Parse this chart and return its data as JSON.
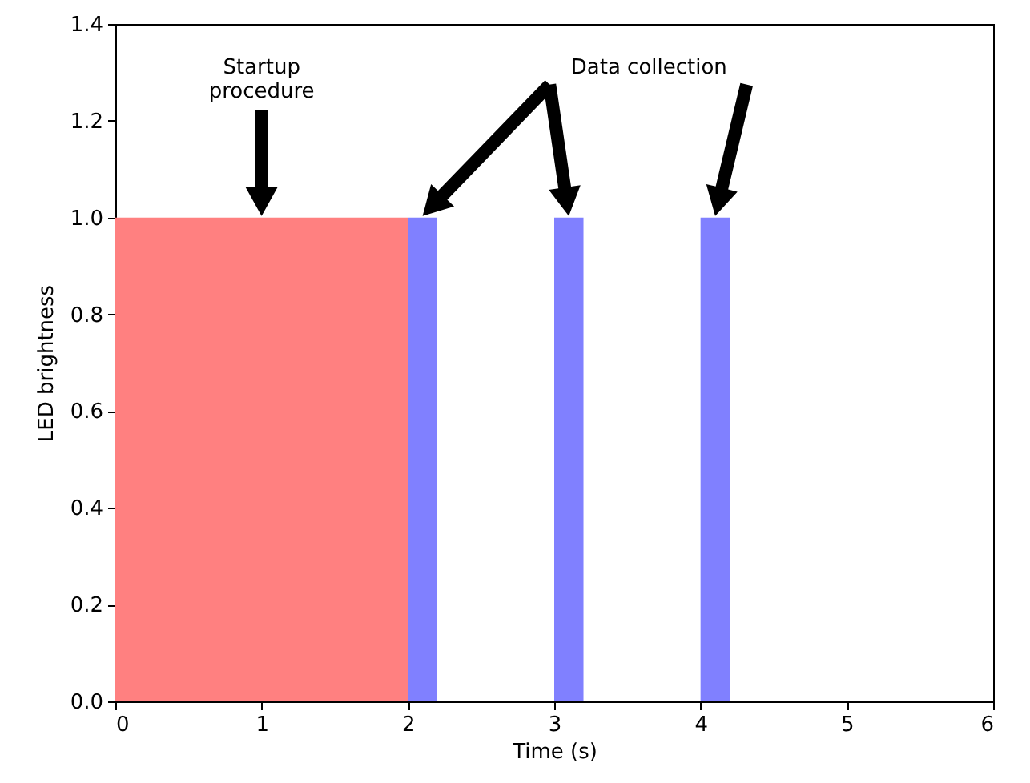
{
  "chart_data": {
    "type": "histogram",
    "xlabel": "Time (s)",
    "ylabel": "LED brightness",
    "bins": [
      0,
      2,
      2.2,
      3,
      3.2,
      4,
      4.2
    ],
    "values": [
      1,
      1,
      0,
      1,
      0,
      1
    ],
    "colors": [
      "#ff8080",
      "#8080ff",
      "#8080ff",
      "#8080ff",
      "#8080ff",
      "#8080ff"
    ],
    "xlim": [
      0,
      6
    ],
    "xticks": [
      0,
      1,
      2,
      3,
      4,
      5,
      6
    ],
    "ylim": [
      0,
      1.4
    ],
    "yticks": [
      {
        "value": 0,
        "label": "0.0"
      },
      {
        "value": 0.2,
        "label": "0.2"
      },
      {
        "value": 0.4,
        "label": "0.4"
      },
      {
        "value": 0.6,
        "label": "0.6"
      },
      {
        "value": 0.8,
        "label": "0.8"
      },
      {
        "value": 1,
        "label": "1.0"
      },
      {
        "value": 1.2,
        "label": "1.2"
      },
      {
        "value": 1.4,
        "label": "1.4"
      }
    ],
    "grid": false,
    "annotations": [
      "Startup\nprocedure",
      "Data collection"
    ]
  }
}
